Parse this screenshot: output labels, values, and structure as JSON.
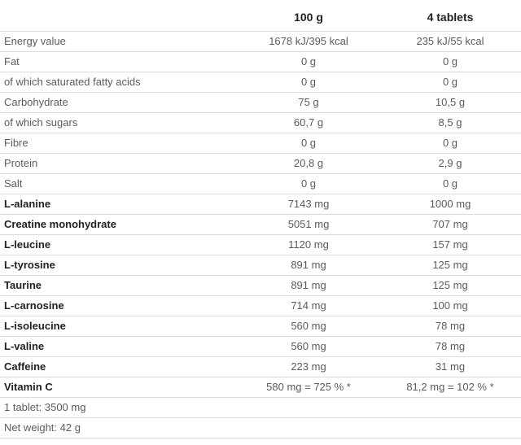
{
  "table": {
    "header": {
      "label": "",
      "per100g": "100 g",
      "per4tablets": "4 tablets"
    },
    "rows": [
      {
        "label": "Energy value",
        "per100g": "1678 kJ/395 kcal",
        "per4tablets": "235 kJ/55 kcal"
      },
      {
        "label": "Fat",
        "per100g": "0 g",
        "per4tablets": "0 g"
      },
      {
        "label": "of which saturated fatty acids",
        "per100g": "0 g",
        "per4tablets": "0 g"
      },
      {
        "label": "Carbohydrate",
        "per100g": "75 g",
        "per4tablets": "10,5 g"
      },
      {
        "label": "of which sugars",
        "per100g": "60,7 g",
        "per4tablets": "8,5 g"
      },
      {
        "label": "Fibre",
        "per100g": "0 g",
        "per4tablets": "0 g"
      },
      {
        "label": "Protein",
        "per100g": "20,8 g",
        "per4tablets": "2,9 g"
      },
      {
        "label": "Salt",
        "per100g": "0 g",
        "per4tablets": "0 g"
      },
      {
        "label": "L-alanine",
        "per100g": "7143 mg",
        "per4tablets": "1000 mg"
      },
      {
        "label": "Creatine monohydrate",
        "per100g": "5051 mg",
        "per4tablets": "707 mg"
      },
      {
        "label": "L-leucine",
        "per100g": "1120 mg",
        "per4tablets": "157 mg"
      },
      {
        "label": "L-tyrosine",
        "per100g": "891 mg",
        "per4tablets": "125 mg"
      },
      {
        "label": "Taurine",
        "per100g": "891 mg",
        "per4tablets": "125 mg"
      },
      {
        "label": "L-carnosine",
        "per100g": "714 mg",
        "per4tablets": "100 mg"
      },
      {
        "label": "L-isoleucine",
        "per100g": "560 mg",
        "per4tablets": "78 mg"
      },
      {
        "label": "L-valine",
        "per100g": "560 mg",
        "per4tablets": "78 mg"
      },
      {
        "label": "Caffeine",
        "per100g": "223 mg",
        "per4tablets": "31 mg"
      },
      {
        "label": "Vitamin C",
        "per100g": "580 mg = 725 % *",
        "per4tablets": "81,2 mg = 102 % *"
      }
    ],
    "footnotes": [
      {
        "text": "1 tablet: 3500 mg"
      },
      {
        "text": "Net weight: 42 g"
      }
    ]
  },
  "colors": {
    "row_border": "#dadcde",
    "text_muted": "#585c5f",
    "text_strong": "#202326",
    "background": "#ffffff"
  }
}
